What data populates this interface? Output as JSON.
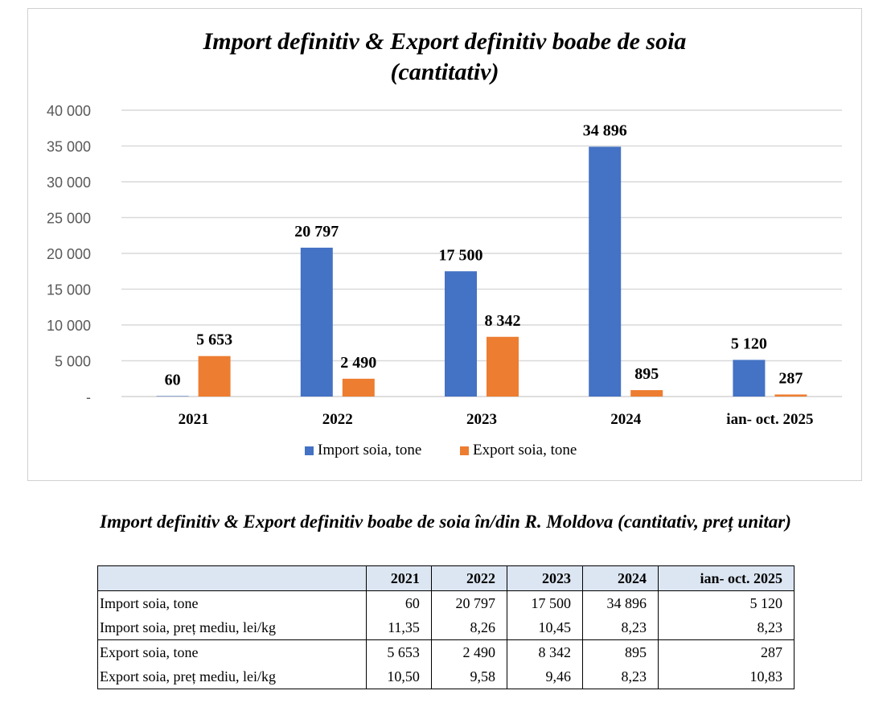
{
  "chart_data": {
    "type": "bar",
    "title_line1": "Import definitiv & Export definitiv boabe de soia",
    "title_line2": "(cantitativ)",
    "categories": [
      "2021",
      "2022",
      "2023",
      "2024",
      "ian- oct. 2025"
    ],
    "series": [
      {
        "name": "Import soia, tone",
        "color": "#4472c4",
        "values": [
          60,
          20797,
          17500,
          34896,
          5120
        ],
        "labels": [
          "60",
          "20 797",
          "17 500",
          "34 896",
          "5 120"
        ]
      },
      {
        "name": "Export soia, tone",
        "color": "#ed7d31",
        "values": [
          5653,
          2490,
          8342,
          895,
          287
        ],
        "labels": [
          "5 653",
          "2 490",
          "8 342",
          "895",
          "287"
        ]
      }
    ],
    "ylim": [
      0,
      40000
    ],
    "yticks": [
      0,
      5000,
      10000,
      15000,
      20000,
      25000,
      30000,
      35000,
      40000
    ],
    "ytick_labels": [
      "-",
      "5 000",
      "10 000",
      "15 000",
      "20 000",
      "25 000",
      "30 000",
      "35 000",
      "40 000"
    ],
    "grid": true,
    "legend_position": "bottom"
  },
  "section_title": "Import definitiv & Export definitiv boabe de soia în/din R. Moldova (cantitativ, preț unitar)",
  "table": {
    "header": [
      "",
      "2021",
      "2022",
      "2023",
      "2024",
      "ian- oct.  2025"
    ],
    "rows": [
      [
        "Import soia, tone",
        "60",
        "20 797",
        "17 500",
        "34 896",
        "5 120"
      ],
      [
        "Import soia, preț mediu, lei/kg",
        "11,35",
        "8,26",
        "10,45",
        "8,23",
        "8,23"
      ],
      [
        "Export soia, tone",
        "5 653",
        "2 490",
        "8 342",
        "895",
        "287"
      ],
      [
        "Export soia, preț mediu, lei/kg",
        "10,50",
        "9,58",
        "9,46",
        "8,23",
        "10,83"
      ]
    ]
  }
}
